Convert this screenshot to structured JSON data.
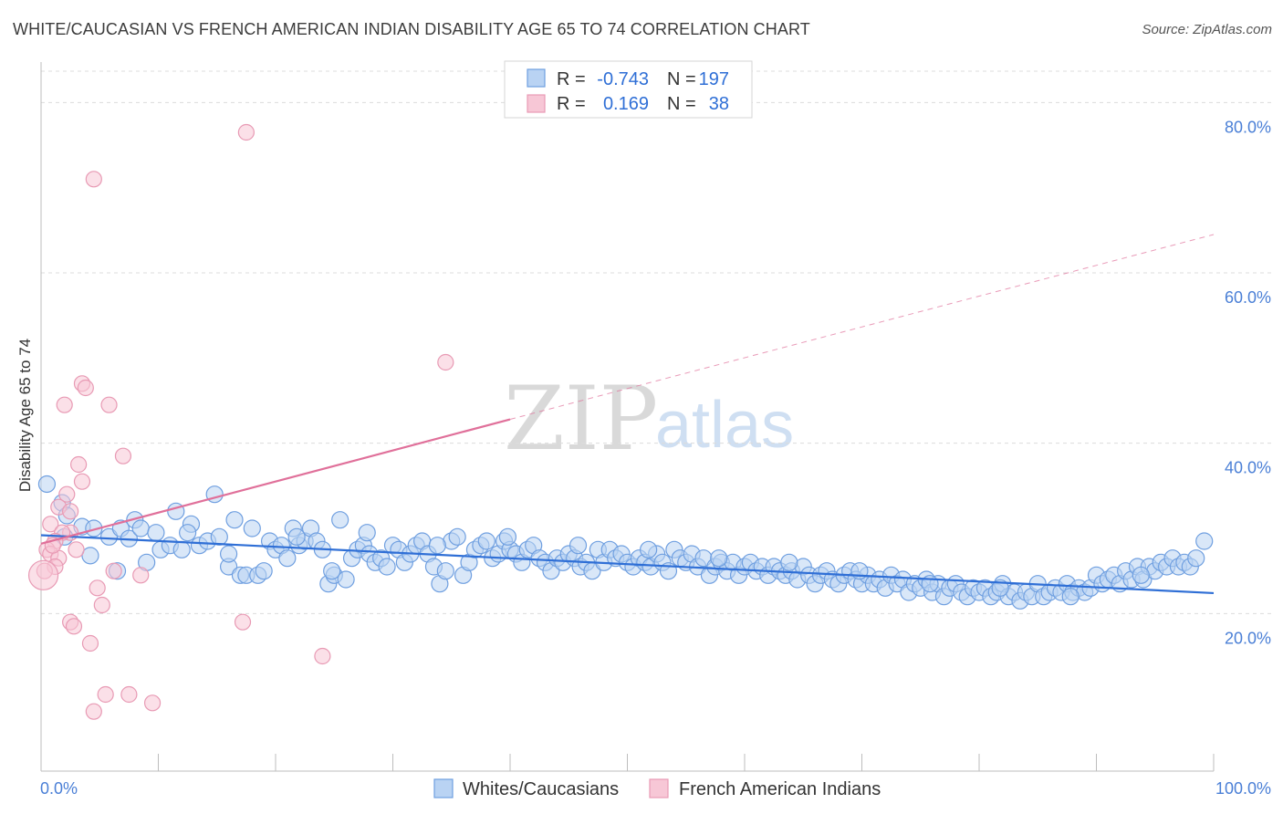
{
  "header": {
    "title": "WHITE/CAUCASIAN VS FRENCH AMERICAN INDIAN DISABILITY AGE 65 TO 74 CORRELATION CHART",
    "source": "Source: ZipAtlas.com"
  },
  "watermark": {
    "zip": "ZIP",
    "atlas": "atlas"
  },
  "legend_box": {
    "rows": [
      {
        "r_label": "R =",
        "r_value": "-0.743",
        "n_label": "N =",
        "n_value": "197",
        "color": "#a9c8f0"
      },
      {
        "r_label": "R =",
        "r_value": "0.169",
        "n_label": "N =",
        "n_value": "38",
        "color": "#f5b8cb"
      }
    ]
  },
  "bottom_legend": [
    {
      "label": "Whites/Caucasians",
      "color": "#a9c8f0"
    },
    {
      "label": "French American Indians",
      "color": "#f5b8cb"
    }
  ],
  "chart_data": {
    "type": "scatter",
    "title": "WHITE/CAUCASIAN VS FRENCH AMERICAN INDIAN DISABILITY AGE 65 TO 74 CORRELATION CHART",
    "xlabel": "",
    "ylabel": "Disability Age 65 to 74",
    "xlim": [
      0,
      100
    ],
    "ylim": [
      1.5,
      84
    ],
    "x_tick_labels": [
      "0.0%",
      "100.0%"
    ],
    "y_ticks": [
      20,
      40,
      60,
      80
    ],
    "y_tick_labels": [
      "20.0%",
      "40.0%",
      "60.0%",
      "80.0%"
    ],
    "grid": true,
    "colors": {
      "blue": "#6f9fe0",
      "blue_fill": "#b9d3f3",
      "pink": "#e89ab4",
      "pink_fill": "#f7c7d6",
      "blue_line": "#2f6fd6",
      "pink_line": "#e0709a"
    },
    "series": [
      {
        "name": "Whites/Caucasians",
        "trend": {
          "x0": 0,
          "y0": 29.2,
          "x1": 100,
          "y1": 22.4
        },
        "points": [
          [
            0.5,
            35.2
          ],
          [
            1.8,
            33.0
          ],
          [
            2.2,
            31.5
          ],
          [
            2.0,
            29.0
          ],
          [
            3.5,
            30.2
          ],
          [
            4.5,
            30.0
          ],
          [
            4.2,
            26.8
          ],
          [
            5.8,
            29.0
          ],
          [
            6.5,
            25.0
          ],
          [
            6.8,
            30.0
          ],
          [
            7.5,
            28.8
          ],
          [
            8.0,
            31.0
          ],
          [
            8.5,
            30.0
          ],
          [
            9.0,
            26.0
          ],
          [
            9.8,
            29.5
          ],
          [
            10.2,
            27.5
          ],
          [
            11.0,
            28.0
          ],
          [
            11.5,
            32.0
          ],
          [
            12.0,
            27.5
          ],
          [
            12.8,
            30.5
          ],
          [
            13.5,
            28.0
          ],
          [
            14.2,
            28.5
          ],
          [
            14.8,
            34.0
          ],
          [
            15.2,
            29.0
          ],
          [
            16.0,
            25.5
          ],
          [
            16.5,
            31.0
          ],
          [
            17.0,
            24.5
          ],
          [
            17.5,
            24.5
          ],
          [
            18.0,
            30.0
          ],
          [
            18.5,
            24.5
          ],
          [
            19.0,
            25.0
          ],
          [
            19.5,
            28.5
          ],
          [
            20.0,
            27.5
          ],
          [
            20.5,
            28.0
          ],
          [
            21.0,
            26.5
          ],
          [
            21.5,
            30.0
          ],
          [
            22.0,
            28.0
          ],
          [
            22.5,
            28.5
          ],
          [
            23.0,
            30.0
          ],
          [
            23.5,
            28.5
          ],
          [
            24.0,
            27.5
          ],
          [
            24.5,
            23.5
          ],
          [
            25.0,
            24.5
          ],
          [
            25.5,
            31.0
          ],
          [
            26.0,
            24.0
          ],
          [
            26.5,
            26.5
          ],
          [
            27.0,
            27.5
          ],
          [
            27.5,
            28.0
          ],
          [
            28.0,
            27.0
          ],
          [
            28.5,
            26.0
          ],
          [
            29.0,
            26.5
          ],
          [
            29.5,
            25.5
          ],
          [
            30.0,
            28.0
          ],
          [
            30.5,
            27.5
          ],
          [
            31.0,
            26.0
          ],
          [
            31.5,
            27.0
          ],
          [
            32.0,
            28.0
          ],
          [
            32.5,
            28.5
          ],
          [
            33.0,
            27.0
          ],
          [
            33.5,
            25.5
          ],
          [
            34.0,
            23.5
          ],
          [
            34.5,
            25.0
          ],
          [
            35.0,
            28.5
          ],
          [
            35.5,
            29.0
          ],
          [
            36.0,
            24.5
          ],
          [
            36.5,
            26.0
          ],
          [
            37.0,
            27.5
          ],
          [
            37.5,
            28.0
          ],
          [
            38.0,
            28.5
          ],
          [
            38.5,
            26.5
          ],
          [
            39.0,
            27.0
          ],
          [
            39.5,
            28.5
          ],
          [
            40.0,
            27.5
          ],
          [
            40.5,
            27.0
          ],
          [
            41.0,
            26.0
          ],
          [
            41.5,
            27.5
          ],
          [
            42.0,
            28.0
          ],
          [
            42.5,
            26.5
          ],
          [
            43.0,
            26.0
          ],
          [
            43.5,
            25.0
          ],
          [
            44.0,
            26.5
          ],
          [
            44.5,
            26.0
          ],
          [
            45.0,
            27.0
          ],
          [
            45.5,
            26.5
          ],
          [
            46.0,
            25.5
          ],
          [
            46.5,
            26.0
          ],
          [
            47.0,
            25.0
          ],
          [
            47.5,
            27.5
          ],
          [
            48.0,
            26.0
          ],
          [
            48.5,
            27.5
          ],
          [
            49.0,
            26.5
          ],
          [
            49.5,
            27.0
          ],
          [
            50.0,
            26.0
          ],
          [
            50.5,
            25.5
          ],
          [
            51.0,
            26.5
          ],
          [
            51.5,
            26.0
          ],
          [
            52.0,
            25.5
          ],
          [
            52.5,
            27.0
          ],
          [
            53.0,
            26.0
          ],
          [
            53.5,
            25.0
          ],
          [
            54.0,
            27.5
          ],
          [
            54.5,
            26.5
          ],
          [
            55.0,
            26.0
          ],
          [
            55.5,
            27.0
          ],
          [
            56.0,
            25.5
          ],
          [
            56.5,
            26.5
          ],
          [
            57.0,
            24.5
          ],
          [
            57.5,
            25.5
          ],
          [
            58.0,
            26.0
          ],
          [
            58.5,
            25.0
          ],
          [
            59.0,
            26.0
          ],
          [
            59.5,
            24.5
          ],
          [
            60.0,
            25.5
          ],
          [
            60.5,
            26.0
          ],
          [
            61.0,
            25.0
          ],
          [
            61.5,
            25.5
          ],
          [
            62.0,
            24.5
          ],
          [
            62.5,
            25.5
          ],
          [
            63.0,
            25.0
          ],
          [
            63.5,
            24.5
          ],
          [
            64.0,
            25.0
          ],
          [
            64.5,
            24.0
          ],
          [
            65.0,
            25.5
          ],
          [
            65.5,
            24.5
          ],
          [
            66.0,
            23.5
          ],
          [
            66.5,
            24.5
          ],
          [
            67.0,
            25.0
          ],
          [
            67.5,
            24.0
          ],
          [
            68.0,
            23.5
          ],
          [
            68.5,
            24.5
          ],
          [
            69.0,
            25.0
          ],
          [
            69.5,
            24.0
          ],
          [
            70.0,
            23.5
          ],
          [
            70.5,
            24.5
          ],
          [
            71.0,
            23.5
          ],
          [
            71.5,
            24.0
          ],
          [
            72.0,
            23.0
          ],
          [
            72.5,
            24.5
          ],
          [
            73.0,
            23.5
          ],
          [
            73.5,
            24.0
          ],
          [
            74.0,
            22.5
          ],
          [
            74.5,
            23.5
          ],
          [
            75.0,
            23.0
          ],
          [
            75.5,
            24.0
          ],
          [
            76.0,
            22.5
          ],
          [
            76.5,
            23.5
          ],
          [
            77.0,
            22.0
          ],
          [
            77.5,
            23.0
          ],
          [
            78.0,
            23.5
          ],
          [
            78.5,
            22.5
          ],
          [
            79.0,
            22.0
          ],
          [
            79.5,
            23.0
          ],
          [
            80.0,
            22.5
          ],
          [
            80.5,
            23.0
          ],
          [
            81.0,
            22.0
          ],
          [
            81.5,
            22.5
          ],
          [
            82.0,
            23.5
          ],
          [
            82.5,
            22.0
          ],
          [
            83.0,
            22.5
          ],
          [
            83.5,
            21.5
          ],
          [
            84.0,
            22.5
          ],
          [
            84.5,
            22.0
          ],
          [
            85.0,
            23.5
          ],
          [
            85.5,
            22.0
          ],
          [
            86.0,
            22.5
          ],
          [
            86.5,
            23.0
          ],
          [
            87.0,
            22.5
          ],
          [
            87.5,
            23.5
          ],
          [
            88.0,
            22.5
          ],
          [
            88.5,
            23.0
          ],
          [
            89.0,
            22.5
          ],
          [
            89.5,
            23.0
          ],
          [
            90.0,
            24.5
          ],
          [
            90.5,
            23.5
          ],
          [
            91.0,
            24.0
          ],
          [
            91.5,
            24.5
          ],
          [
            92.0,
            23.5
          ],
          [
            92.5,
            25.0
          ],
          [
            93.0,
            24.0
          ],
          [
            93.5,
            25.5
          ],
          [
            94.0,
            24.0
          ],
          [
            94.5,
            25.5
          ],
          [
            95.0,
            25.0
          ],
          [
            95.5,
            26.0
          ],
          [
            96.0,
            25.5
          ],
          [
            96.5,
            26.5
          ],
          [
            97.0,
            25.5
          ],
          [
            97.5,
            26.0
          ],
          [
            98.0,
            25.5
          ],
          [
            98.5,
            26.5
          ],
          [
            99.2,
            28.5
          ],
          [
            16.0,
            27.0
          ],
          [
            21.8,
            29.0
          ],
          [
            27.8,
            29.5
          ],
          [
            33.8,
            28.0
          ],
          [
            39.8,
            29.0
          ],
          [
            45.8,
            28.0
          ],
          [
            51.8,
            27.5
          ],
          [
            57.8,
            26.5
          ],
          [
            63.8,
            26.0
          ],
          [
            69.8,
            25.0
          ],
          [
            75.8,
            23.5
          ],
          [
            81.8,
            23.0
          ],
          [
            87.8,
            22.0
          ],
          [
            93.8,
            24.5
          ],
          [
            12.5,
            29.5
          ],
          [
            24.8,
            25.0
          ]
        ]
      },
      {
        "name": "French American Indians",
        "trend": {
          "x0": 0,
          "y0": 28.2,
          "x1": 40,
          "y1": 42.8,
          "x_dash_end": 100,
          "y_dash_end": 64.5
        },
        "points": [
          [
            17.5,
            76.5
          ],
          [
            4.5,
            71.0
          ],
          [
            34.5,
            49.5
          ],
          [
            3.5,
            47.0
          ],
          [
            3.8,
            46.5
          ],
          [
            2.0,
            44.5
          ],
          [
            5.8,
            44.5
          ],
          [
            7.0,
            38.5
          ],
          [
            3.2,
            37.5
          ],
          [
            3.5,
            35.5
          ],
          [
            2.2,
            34.0
          ],
          [
            1.5,
            32.5
          ],
          [
            2.5,
            32.0
          ],
          [
            0.8,
            30.5
          ],
          [
            2.5,
            29.5
          ],
          [
            1.8,
            29.5
          ],
          [
            1.2,
            28.5
          ],
          [
            0.5,
            27.5
          ],
          [
            0.8,
            27.0
          ],
          [
            3.0,
            27.5
          ],
          [
            1.5,
            26.5
          ],
          [
            1.2,
            25.5
          ],
          [
            0.3,
            25.0
          ],
          [
            6.2,
            25.0
          ],
          [
            8.5,
            24.5
          ],
          [
            4.8,
            23.0
          ],
          [
            5.2,
            21.0
          ],
          [
            2.5,
            19.0
          ],
          [
            2.8,
            18.5
          ],
          [
            17.2,
            19.0
          ],
          [
            4.2,
            16.5
          ],
          [
            24.0,
            15.0
          ],
          [
            5.5,
            10.5
          ],
          [
            7.5,
            10.5
          ],
          [
            9.5,
            9.5
          ],
          [
            4.5,
            8.5
          ],
          [
            0.2,
            24.5
          ],
          [
            1.0,
            28.0
          ]
        ]
      }
    ]
  }
}
